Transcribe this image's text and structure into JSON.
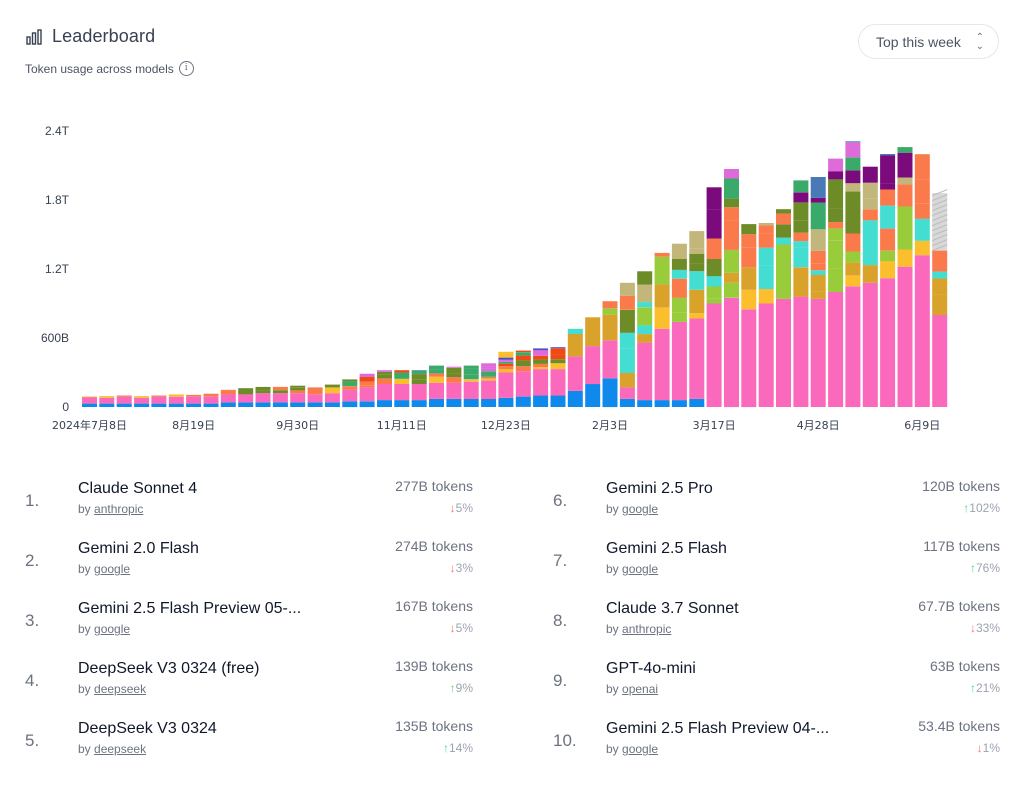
{
  "header": {
    "title": "Leaderboard",
    "subtitle": "Token usage across models",
    "info_icon": "info-icon",
    "title_icon": "bar-chart-icon"
  },
  "period_select": {
    "value": "Top this week"
  },
  "chart_data": {
    "type": "bar",
    "stacked": true,
    "title": "",
    "xlabel": "",
    "ylabel": "",
    "ylim_T": [
      0,
      2.4
    ],
    "yticks": [
      {
        "value": 0,
        "label": "0"
      },
      {
        "value": 0.6,
        "label": "600B"
      },
      {
        "value": 1.2,
        "label": "1.2T"
      },
      {
        "value": 1.8,
        "label": "1.8T"
      },
      {
        "value": 2.4,
        "label": "2.4T"
      }
    ],
    "xtick_labels": [
      {
        "index": 0,
        "label": "2024年7月8日"
      },
      {
        "index": 6,
        "label": "8月19日"
      },
      {
        "index": 12,
        "label": "9月30日"
      },
      {
        "index": 18,
        "label": "11月11日"
      },
      {
        "index": 24,
        "label": "12月23日"
      },
      {
        "index": 30,
        "label": "2月3日"
      },
      {
        "index": 36,
        "label": "3月17日"
      },
      {
        "index": 42,
        "label": "4月28日"
      },
      {
        "index": 48,
        "label": "6月9日"
      }
    ],
    "totals_T": [
      0.09,
      0.095,
      0.1,
      0.095,
      0.1,
      0.11,
      0.105,
      0.115,
      0.15,
      0.165,
      0.175,
      0.175,
      0.185,
      0.17,
      0.195,
      0.24,
      0.29,
      0.32,
      0.32,
      0.32,
      0.36,
      0.35,
      0.36,
      0.38,
      0.48,
      0.49,
      0.51,
      0.52,
      0.68,
      0.78,
      0.92,
      1.08,
      1.18,
      1.34,
      1.42,
      1.53,
      1.91,
      2.07,
      1.59,
      1.6,
      1.72,
      1.97,
      2.0,
      2.16,
      2.31,
      2.09,
      2.2,
      2.26,
      2.2,
      1.36
    ],
    "series_colors": [
      "#1089ec",
      "#fb69bd",
      "#fbbe2d",
      "#d8a22b",
      "#99cc3a",
      "#44ddd1",
      "#fb7a4b",
      "#6d8c27",
      "#c2b67a",
      "#7b0b7d",
      "#3aaa6b",
      "#de6bd9",
      "#4a7ab5",
      "#ef4a14",
      "#4b50c7",
      "#c4c4c4"
    ],
    "breakdown_T": [
      [
        0.03,
        0.05
      ],
      [
        0.03,
        0.05
      ],
      [
        0.03,
        0.06
      ],
      [
        0.03,
        0.05
      ],
      [
        0.03,
        0.06
      ],
      [
        0.03,
        0.06
      ],
      [
        0.03,
        0.06
      ],
      [
        0.03,
        0.06
      ],
      [
        0.04,
        0.07
      ],
      [
        0.04,
        0.07
      ],
      [
        0.04,
        0.08
      ],
      [
        0.04,
        0.08
      ],
      [
        0.04,
        0.08
      ],
      [
        0.04,
        0.07
      ],
      [
        0.04,
        0.08
      ],
      [
        0.05,
        0.1
      ],
      [
        0.05,
        0.12
      ],
      [
        0.06,
        0.14
      ],
      [
        0.06,
        0.14
      ],
      [
        0.06,
        0.14
      ],
      [
        0.07,
        0.14
      ],
      [
        0.07,
        0.14
      ],
      [
        0.07,
        0.15
      ],
      [
        0.07,
        0.16
      ],
      [
        0.08,
        0.22
      ],
      [
        0.09,
        0.22
      ],
      [
        0.1,
        0.23
      ],
      [
        0.1,
        0.23
      ],
      [
        0.14,
        0.3
      ],
      [
        0.2,
        0.33
      ],
      [
        0.25,
        0.33
      ],
      [
        0.07,
        0.1
      ],
      [
        0.06,
        0.5
      ],
      [
        0.06,
        0.62
      ],
      [
        0.06,
        0.68
      ],
      [
        0.07,
        0.7
      ],
      [
        0,
        0.9
      ],
      [
        0,
        0.95
      ],
      [
        0,
        0.85
      ],
      [
        0,
        0.9
      ],
      [
        0,
        0.94
      ],
      [
        0,
        0.96
      ],
      [
        0,
        0.94
      ],
      [
        0,
        1.0
      ],
      [
        0,
        1.05
      ],
      [
        0,
        1.08
      ],
      [
        0,
        1.12
      ],
      [
        0,
        1.22
      ],
      [
        0,
        1.32
      ],
      [
        0,
        0.8
      ]
    ]
  },
  "leaderboard": [
    {
      "rank": "1.",
      "name": "Claude Sonnet 4",
      "by": "by",
      "author": "anthropic",
      "tokens": "277B tokens",
      "change": "5%",
      "direction": "down"
    },
    {
      "rank": "2.",
      "name": "Gemini 2.0 Flash",
      "by": "by",
      "author": "google",
      "tokens": "274B tokens",
      "change": "3%",
      "direction": "down"
    },
    {
      "rank": "3.",
      "name": "Gemini 2.5 Flash Preview 05-...",
      "by": "by",
      "author": "google",
      "tokens": "167B tokens",
      "change": "5%",
      "direction": "down"
    },
    {
      "rank": "4.",
      "name": "DeepSeek V3 0324 (free)",
      "by": "by",
      "author": "deepseek",
      "tokens": "139B tokens",
      "change": "9%",
      "direction": "up"
    },
    {
      "rank": "5.",
      "name": "DeepSeek V3 0324",
      "by": "by",
      "author": "deepseek",
      "tokens": "135B tokens",
      "change": "14%",
      "direction": "up"
    },
    {
      "rank": "6.",
      "name": "Gemini 2.5 Pro",
      "by": "by",
      "author": "google",
      "tokens": "120B tokens",
      "change": "102%",
      "direction": "up"
    },
    {
      "rank": "7.",
      "name": "Gemini 2.5 Flash",
      "by": "by",
      "author": "google",
      "tokens": "117B tokens",
      "change": "76%",
      "direction": "up"
    },
    {
      "rank": "8.",
      "name": "Claude 3.7 Sonnet",
      "by": "by",
      "author": "anthropic",
      "tokens": "67.7B tokens",
      "change": "33%",
      "direction": "down"
    },
    {
      "rank": "9.",
      "name": "GPT-4o-mini",
      "by": "by",
      "author": "openai",
      "tokens": "63B tokens",
      "change": "21%",
      "direction": "up"
    },
    {
      "rank": "10.",
      "name": "Gemini 2.5 Flash Preview 04-...",
      "by": "by",
      "author": "google",
      "tokens": "53.4B tokens",
      "change": "1%",
      "direction": "down"
    }
  ]
}
